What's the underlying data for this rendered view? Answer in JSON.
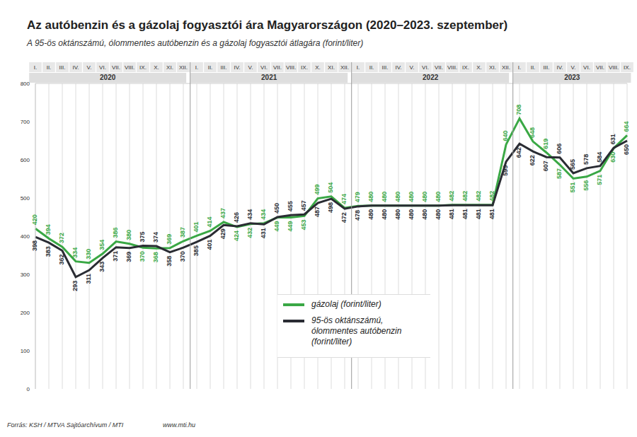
{
  "chart_data": {
    "type": "line",
    "title": "Az autóbenzin és a gázolaj fogyasztói ára Magyarországon (2020–2023. szeptember)",
    "subtitle": "A 95-ös oktánszámú, ólommentes autóbenzin és a gázolaj fogyasztói átlagára (forint/liter)",
    "categories": [
      "I.",
      "II.",
      "III.",
      "IV.",
      "V.",
      "VI.",
      "VII.",
      "VIII.",
      "IX.",
      "X.",
      "XI.",
      "XII.",
      "I.",
      "II.",
      "III.",
      "IV.",
      "V.",
      "VI.",
      "VII.",
      "VIII.",
      "IX.",
      "X.",
      "XI.",
      "XII.",
      "I.",
      "II.",
      "III.",
      "IV.",
      "V.",
      "VI.",
      "VII.",
      "VIII.",
      "IX.",
      "X.",
      "XI.",
      "XII.",
      "I.",
      "II.",
      "III.",
      "IV.",
      "V.",
      "VI.",
      "VII.",
      "VIII.",
      "IX."
    ],
    "year_groups": [
      {
        "label": "2020",
        "count": 12
      },
      {
        "label": "2021",
        "count": 12
      },
      {
        "label": "2022",
        "count": 12
      },
      {
        "label": "2023",
        "count": 9
      }
    ],
    "series": [
      {
        "name": "gázolaj (forint/liter)",
        "color": "#3aa845",
        "values": [
          420,
          394,
          372,
          334,
          330,
          354,
          386,
          380,
          370,
          368,
          369,
          387,
          401,
          414,
          437,
          424,
          432,
          434,
          449,
          449,
          453,
          499,
          504,
          474,
          479,
          480,
          480,
          480,
          480,
          480,
          480,
          482,
          482,
          482,
          482,
          640,
          708,
          648,
          619,
          587,
          551,
          556,
          571,
          630,
          664
        ]
      },
      {
        "name": "95-ös oktánszámú, ólommentes autóbenzin (forint/liter)",
        "color": "#2a2c33",
        "values": [
          398,
          383,
          362,
          293,
          311,
          343,
          371,
          369,
          375,
          374,
          358,
          370,
          385,
          401,
          429,
          426,
          434,
          431,
          450,
          455,
          457,
          487,
          498,
          472,
          478,
          480,
          480,
          480,
          480,
          480,
          480,
          481,
          481,
          481,
          481,
          595,
          642,
          622,
          607,
          606,
          565,
          578,
          584,
          631,
          650
        ]
      }
    ],
    "ylim": [
      0,
      800
    ],
    "yticks": [
      0,
      100,
      200,
      300,
      400,
      500,
      600,
      700,
      800
    ],
    "grid": true,
    "legend": "bottom",
    "data_labels": true,
    "source": "Forrás: KSH / MTVA Sajtóarchívum / MTI",
    "url": "www.mti.hu"
  }
}
